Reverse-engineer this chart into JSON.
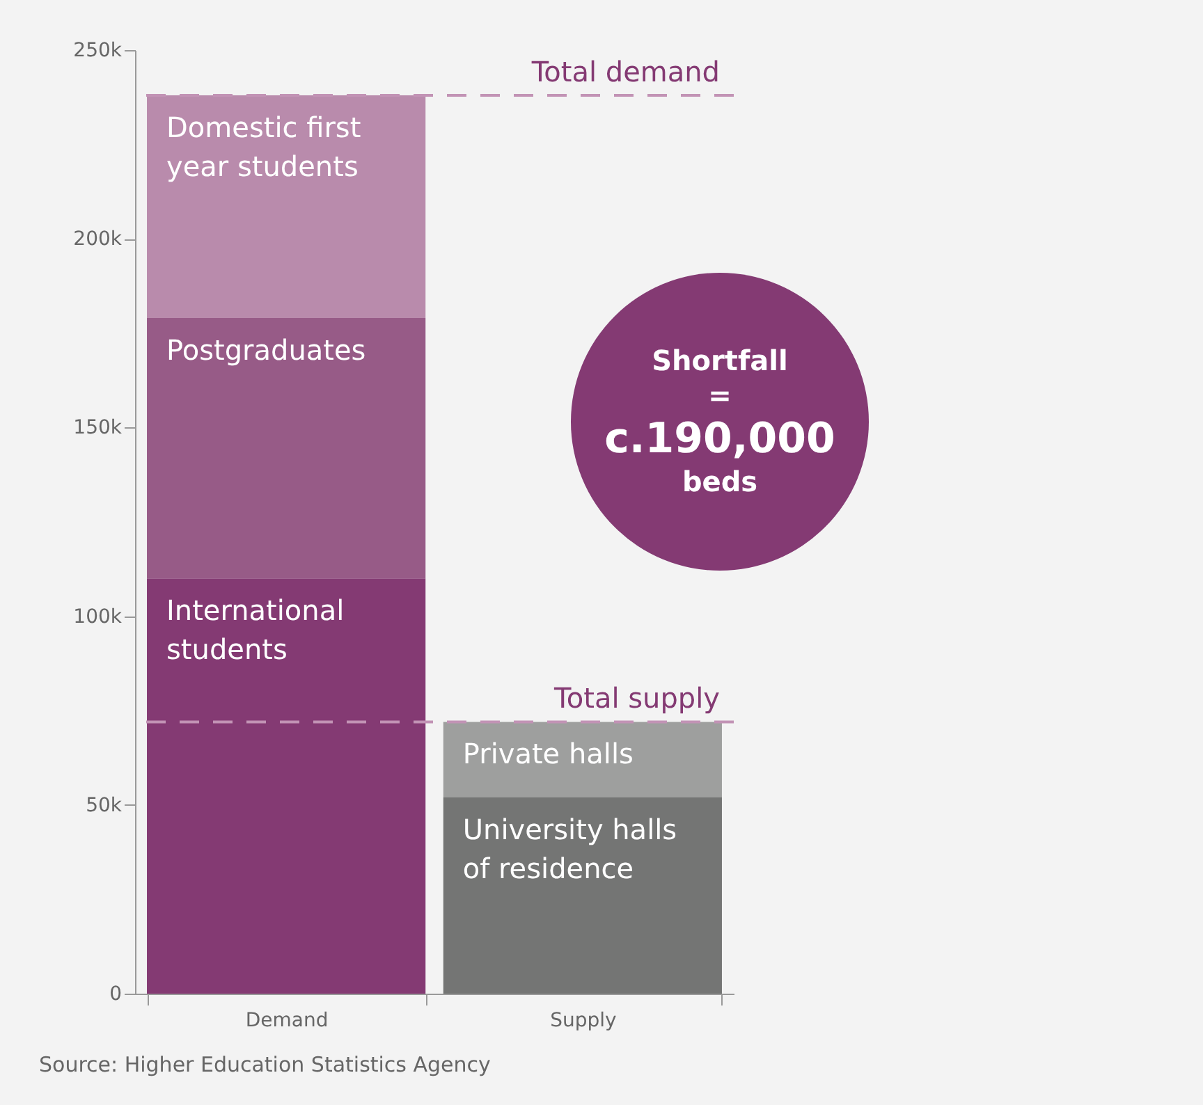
{
  "chart_data": {
    "type": "bar",
    "stacked": true,
    "categories": [
      "Demand",
      "Supply"
    ],
    "series": [
      {
        "name": "International students",
        "color": "#843a73",
        "values": [
          110000,
          null
        ]
      },
      {
        "name": "Postgraduates",
        "color": "#975b87",
        "values": [
          69000,
          null
        ]
      },
      {
        "name": "Domestic first year students",
        "color": "#b98bac",
        "values": [
          59000,
          null
        ]
      },
      {
        "name": "University halls of residence",
        "color": "#747574",
        "values": [
          null,
          52000
        ]
      },
      {
        "name": "Private halls",
        "color": "#9e9f9e",
        "values": [
          null,
          20000
        ]
      }
    ],
    "ylim": [
      0,
      250000
    ],
    "yticks": [
      0,
      {
        "value": 50000,
        "label": "50k"
      },
      {
        "value": 100000,
        "label": "100k"
      },
      {
        "value": 150000,
        "label": "150k"
      },
      {
        "value": 200000,
        "label": "200k"
      },
      {
        "value": 250000,
        "label": "250k"
      }
    ],
    "ref_lines": [
      {
        "axis": "y",
        "value": 238000,
        "label": "Total demand",
        "color": "#c293b5",
        "line_style": "dashed"
      },
      {
        "axis": "y",
        "value": 72000,
        "label": "Total supply",
        "color": "#c293b5",
        "line_style": "dashed"
      }
    ],
    "annotations": [
      "Shortfall = c.190,000 beds",
      "Source: Higher Education Statistics Agency"
    ],
    "grid": false,
    "legend": false
  }
}
